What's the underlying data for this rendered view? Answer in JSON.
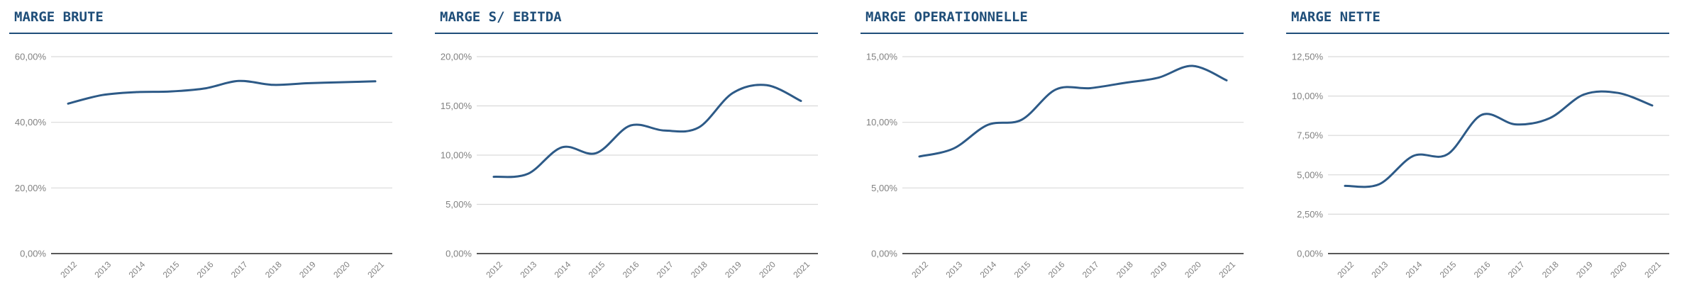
{
  "styles": {
    "title_color": "#1F4E79",
    "line_color": "#2D5A87",
    "grid_color": "#D9D9D9",
    "axis_color": "#595959",
    "tick_label_color": "#818181",
    "background": "#FFFFFF"
  },
  "chart_data": [
    {
      "type": "line",
      "title": "MARGE BRUTE",
      "x": [
        "2012",
        "2013",
        "2014",
        "2015",
        "2016",
        "2017",
        "2018",
        "2019",
        "2020",
        "2021"
      ],
      "values": [
        45.7,
        48.3,
        49.2,
        49.4,
        50.3,
        52.6,
        51.4,
        51.9,
        52.2,
        52.5
      ],
      "unit": "%",
      "ylim": [
        0,
        60
      ],
      "yticks": [
        {
          "value": 0,
          "label": "0,00%"
        },
        {
          "value": 20,
          "label": "20,00%"
        },
        {
          "value": 40,
          "label": "40,00%"
        },
        {
          "value": 60,
          "label": "60,00%"
        }
      ],
      "grid": true,
      "legend": "none"
    },
    {
      "type": "line",
      "title": "MARGE S/ EBITDA",
      "x": [
        "2012",
        "2013",
        "2014",
        "2015",
        "2016",
        "2017",
        "2018",
        "2019",
        "2020",
        "2021"
      ],
      "values": [
        7.8,
        8.1,
        10.8,
        10.2,
        13.0,
        12.5,
        12.8,
        16.3,
        17.1,
        15.5
      ],
      "unit": "%",
      "ylim": [
        0,
        20
      ],
      "yticks": [
        {
          "value": 0,
          "label": "0,00%"
        },
        {
          "value": 5,
          "label": "5,00%"
        },
        {
          "value": 10,
          "label": "10,00%"
        },
        {
          "value": 15,
          "label": "15,00%"
        },
        {
          "value": 20,
          "label": "20,00%"
        }
      ],
      "grid": true,
      "legend": "none"
    },
    {
      "type": "line",
      "title": "MARGE OPERATIONNELLE",
      "x": [
        "2012",
        "2013",
        "2014",
        "2015",
        "2016",
        "2017",
        "2018",
        "2019",
        "2020",
        "2021"
      ],
      "values": [
        7.4,
        8.0,
        9.8,
        10.2,
        12.5,
        12.6,
        13.0,
        13.4,
        14.3,
        13.2
      ],
      "unit": "%",
      "ylim": [
        0,
        15
      ],
      "yticks": [
        {
          "value": 0,
          "label": "0,00%"
        },
        {
          "value": 5,
          "label": "5,00%"
        },
        {
          "value": 10,
          "label": "10,00%"
        },
        {
          "value": 15,
          "label": "15,00%"
        }
      ],
      "grid": true,
      "legend": "none"
    },
    {
      "type": "line",
      "title": "MARGE NETTE",
      "x": [
        "2012",
        "2013",
        "2014",
        "2015",
        "2016",
        "2017",
        "2018",
        "2019",
        "2020",
        "2021"
      ],
      "values": [
        4.3,
        4.4,
        6.2,
        6.3,
        8.8,
        8.2,
        8.6,
        10.1,
        10.2,
        9.4
      ],
      "unit": "%",
      "ylim": [
        0,
        12.5
      ],
      "yticks": [
        {
          "value": 0,
          "label": "0,00%"
        },
        {
          "value": 2.5,
          "label": "2,50%"
        },
        {
          "value": 5,
          "label": "5,00%"
        },
        {
          "value": 7.5,
          "label": "7,50%"
        },
        {
          "value": 10,
          "label": "10,00%"
        },
        {
          "value": 12.5,
          "label": "12,50%"
        }
      ],
      "grid": true,
      "legend": "none"
    }
  ]
}
